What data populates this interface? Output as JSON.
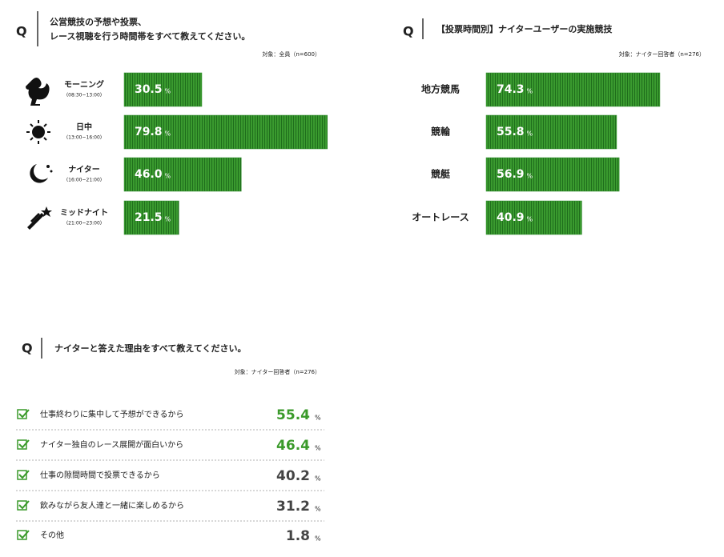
{
  "chart_data": [
    {
      "type": "bar",
      "marker": "Q",
      "title_lines": [
        "公営競技の予想や投票、",
        "レース視聴を行う時間帯をすべて教えてください。"
      ],
      "subtitle": "対象：全員（n=600）",
      "categories": [
        "モーニング",
        "日中",
        "ナイター",
        "ミッドナイト"
      ],
      "sublabels": [
        "(08:30~13:00)",
        "(13:00~16:00)",
        "(16:00~21:00)",
        "(21:00~23:00)"
      ],
      "values": [
        30.5,
        79.8,
        46.0,
        21.5
      ],
      "value_labels": [
        "30.5",
        "79.8",
        "46.0",
        "21.5"
      ],
      "unit": "%",
      "color": "#2e8b2a"
    },
    {
      "type": "bar",
      "marker": "Q",
      "title_lines": [
        "【投票時間別】ナイターユーザーの実施競技"
      ],
      "subtitle": "対象：ナイター回答者（n=276）",
      "categories": [
        "地方競馬",
        "競輪",
        "競艇",
        "オートレース"
      ],
      "values": [
        74.3,
        55.8,
        56.9,
        40.9
      ],
      "value_labels": [
        "74.3",
        "55.8",
        "56.9",
        "40.9"
      ],
      "unit": "%",
      "color": "#2e8b2a"
    },
    {
      "type": "list",
      "marker": "Q",
      "title_lines": [
        "ナイターと答えた理由をすべて教えてください。"
      ],
      "subtitle": "対象：ナイター回答者（n=276）",
      "categories": [
        "仕事終わりに集中して予想ができるから",
        "ナイター独自のレース展開が面白いから",
        "仕事の隙間時間で投票できるから",
        "飲みながら友人達と一緒に楽しめるから",
        "その他"
      ],
      "values": [
        55.4,
        46.4,
        40.2,
        31.2,
        1.8
      ],
      "value_labels": [
        "55.4",
        "46.4",
        "40.2",
        "31.2",
        "1.8"
      ],
      "colors": [
        "#3a9a2a",
        "#3a9a2a",
        "#444444",
        "#444444",
        "#444444"
      ],
      "unit": "%"
    }
  ]
}
